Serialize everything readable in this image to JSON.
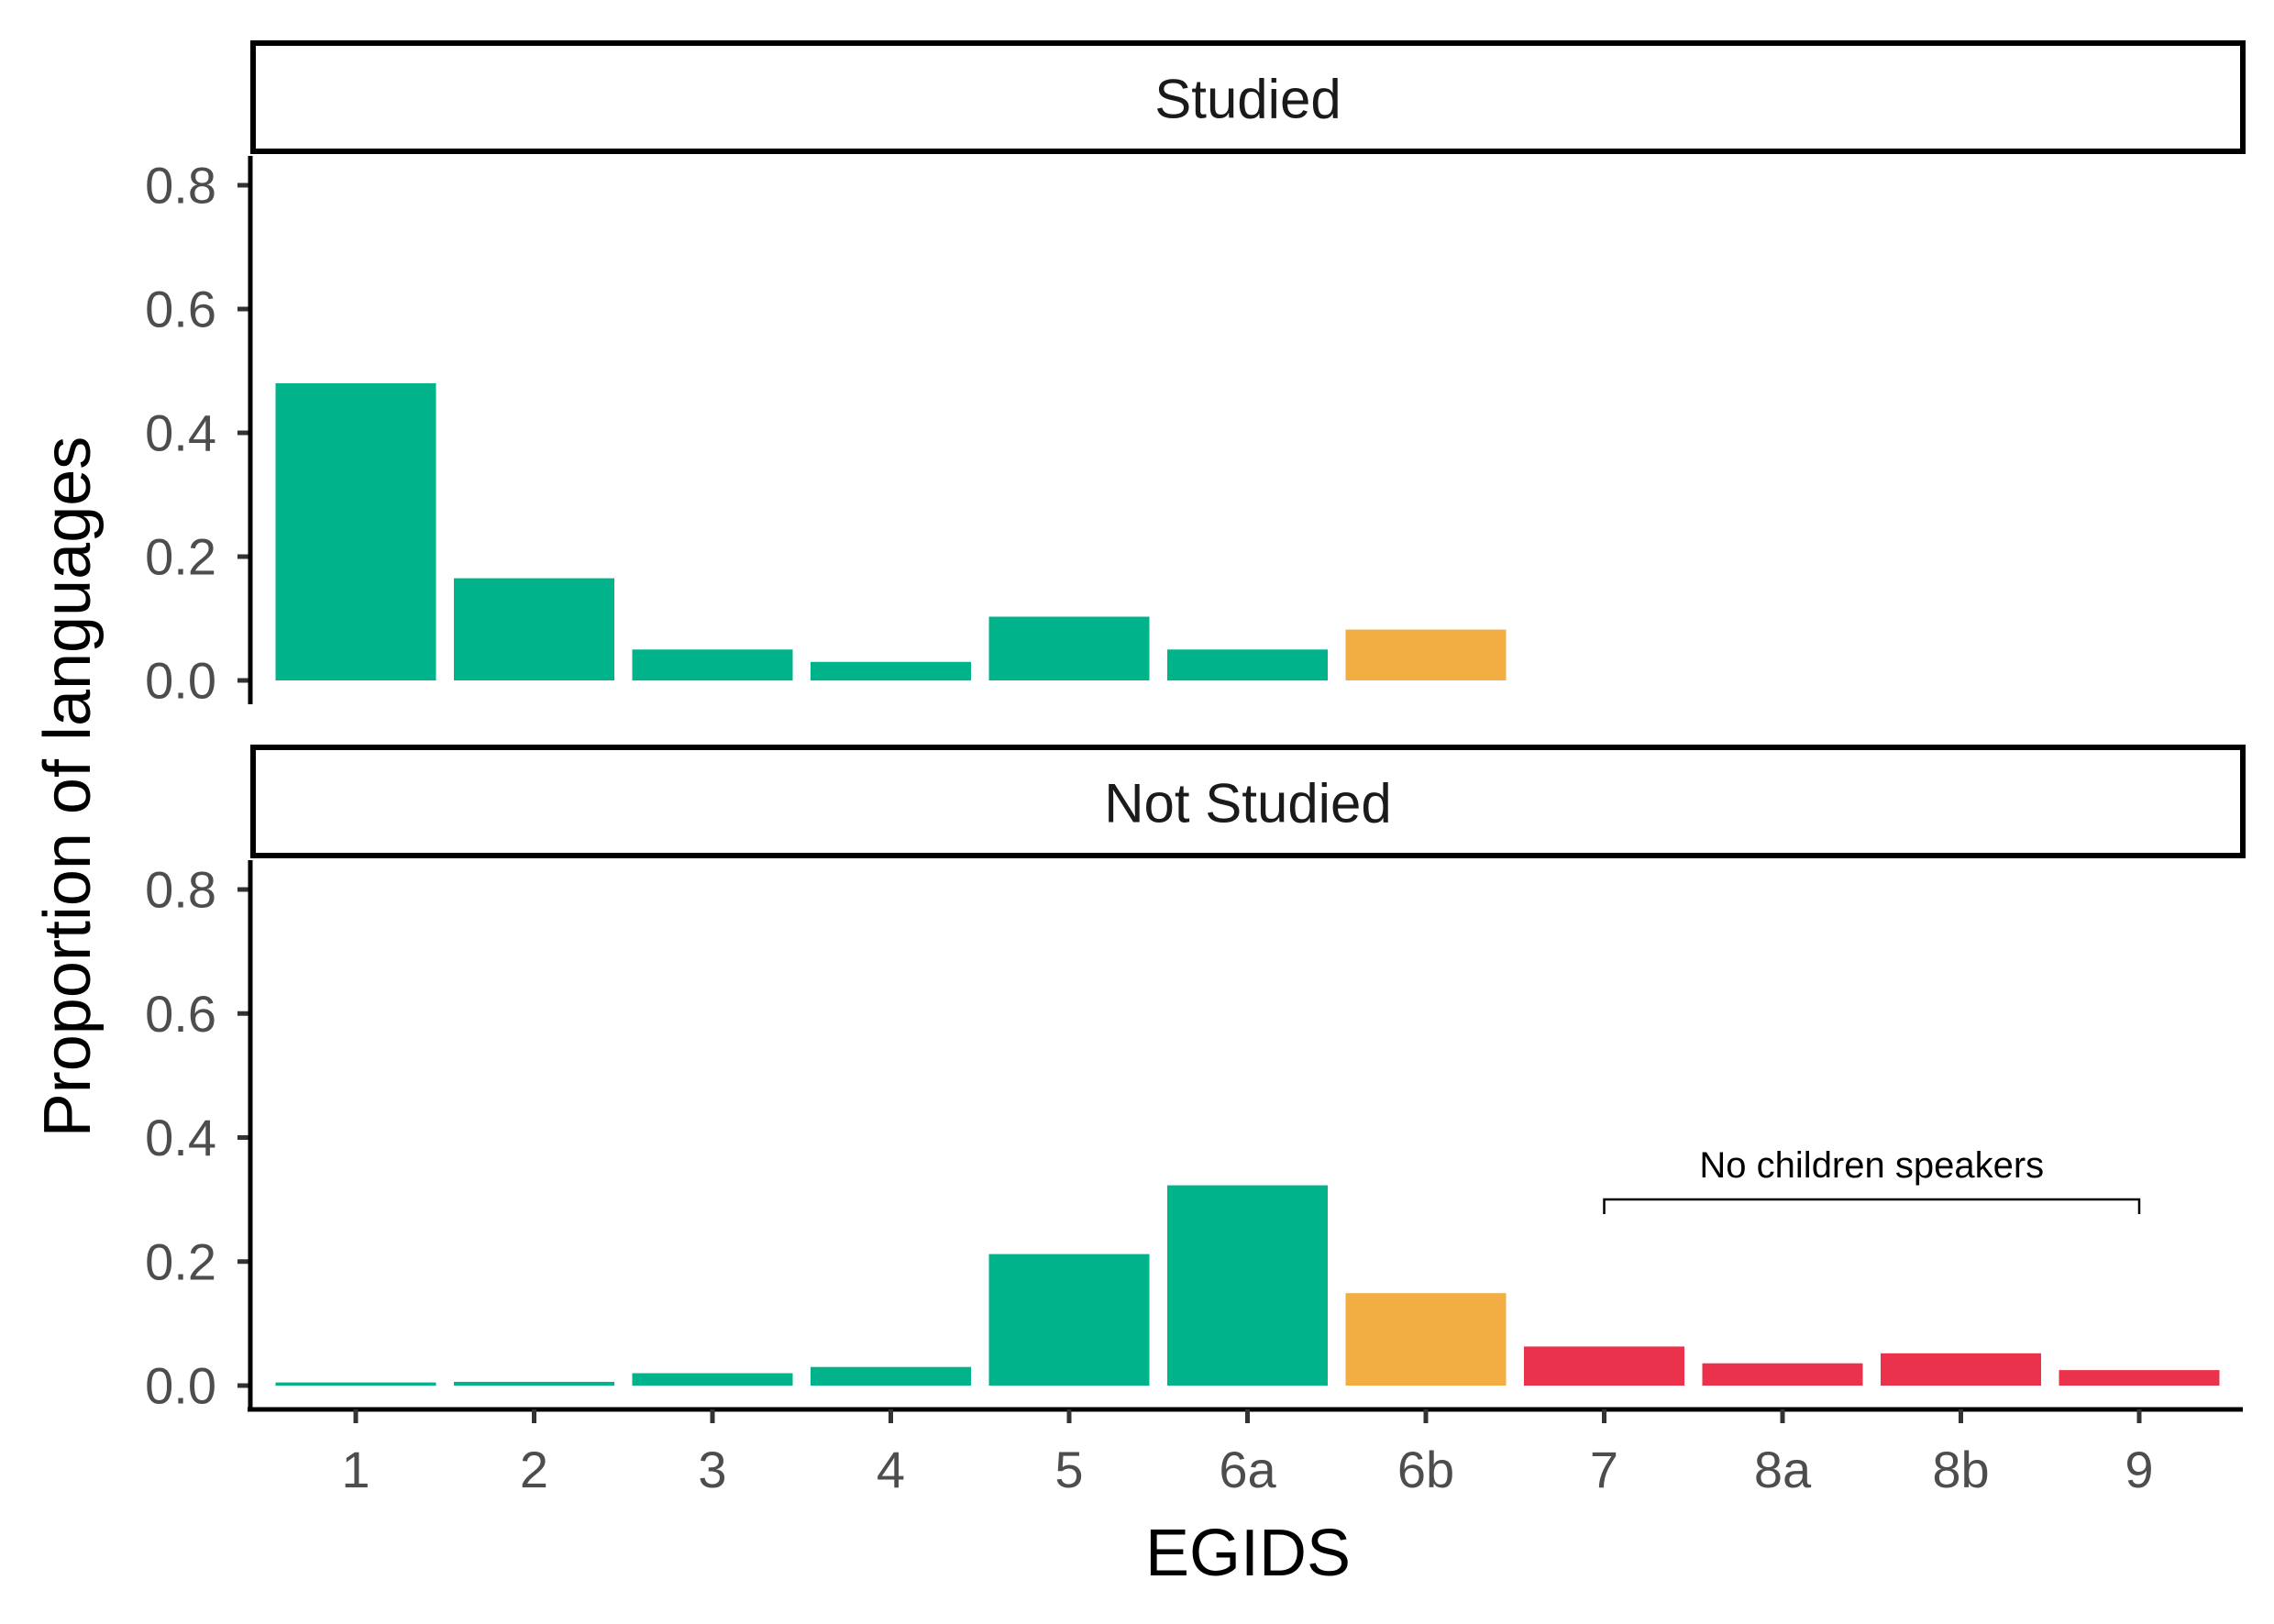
{
  "chart_data": {
    "type": "bar",
    "xlabel": "EGIDS",
    "ylabel": "Proportion of languages",
    "categories": [
      "1",
      "2",
      "3",
      "4",
      "5",
      "6a",
      "6b",
      "7",
      "8a",
      "8b",
      "9"
    ],
    "ylim": [
      0,
      0.8
    ],
    "yticks": [
      "0.0",
      "0.2",
      "0.4",
      "0.6",
      "0.8"
    ],
    "colors": {
      "vigorous": "#00b38a",
      "threatened": "#f2ad43",
      "endangered": "#ea324c"
    },
    "bar_color_groups": [
      "vigorous",
      "vigorous",
      "vigorous",
      "vigorous",
      "vigorous",
      "vigorous",
      "threatened",
      "endangered",
      "endangered",
      "endangered",
      "endangered"
    ],
    "panels": [
      {
        "title": "Studied",
        "values": [
          0.48,
          0.165,
          0.05,
          0.03,
          0.103,
          0.05,
          0.082,
          0,
          0,
          0,
          0
        ]
      },
      {
        "title": "Not Studied",
        "values": [
          0.005,
          0.006,
          0.02,
          0.03,
          0.212,
          0.323,
          0.149,
          0.063,
          0.036,
          0.052,
          0.025
        ]
      }
    ],
    "annotation": {
      "text": "No children speakers",
      "from": "7",
      "to": "9"
    },
    "grid": false,
    "legend": "none"
  }
}
